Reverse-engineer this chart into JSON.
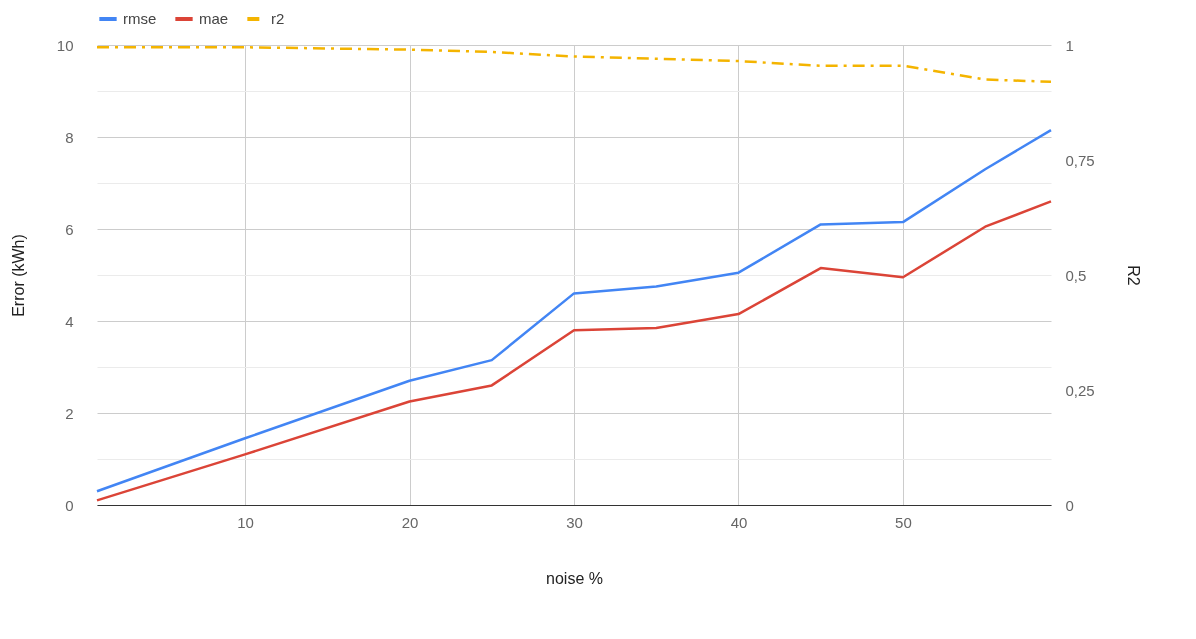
{
  "chart_data": {
    "type": "line",
    "xlabel": "noise %",
    "ylabel": "Error (kWh)",
    "y2label": "R2",
    "x": [
      1,
      10,
      20,
      25,
      30,
      35,
      40,
      45,
      50,
      55,
      59
    ],
    "series": [
      {
        "name": "rmse",
        "color": "#4285f4",
        "values": [
          0.3,
          1.45,
          2.7,
          3.15,
          4.6,
          4.75,
          5.05,
          6.1,
          6.15,
          7.3,
          8.15
        ]
      },
      {
        "name": "mae",
        "color": "#db4437",
        "values": [
          0.1,
          1.1,
          2.25,
          2.6,
          3.8,
          3.85,
          4.15,
          5.15,
          4.95,
          6.05,
          6.6
        ]
      },
      {
        "name": "r2",
        "color": "#f4b400",
        "axis": "y2",
        "line_style": "dashed",
        "values": [
          0.995,
          0.995,
          0.99,
          0.985,
          0.975,
          0.97,
          0.965,
          0.955,
          0.955,
          0.925,
          0.92
        ]
      }
    ],
    "xlim": [
      1,
      59
    ],
    "xticks": [
      10,
      20,
      30,
      40,
      50
    ],
    "ylim": [
      0,
      10
    ],
    "yticks": [
      0,
      {
        "value": 1,
        "label": null
      },
      2,
      {
        "value": 3,
        "label": null
      },
      4,
      {
        "value": 5,
        "label": null
      },
      6,
      {
        "value": 7,
        "label": null
      },
      8,
      {
        "value": 9,
        "label": null
      },
      10
    ],
    "y2lim": [
      0,
      1
    ],
    "y2ticks": [
      0,
      {
        "value": 0.25,
        "label": "0,25"
      },
      {
        "value": 0.5,
        "label": "0,5"
      },
      {
        "value": 0.75,
        "label": "0,75"
      },
      1
    ],
    "grid": true,
    "legend": "top",
    "line_style": "solid",
    "marker": "none"
  }
}
